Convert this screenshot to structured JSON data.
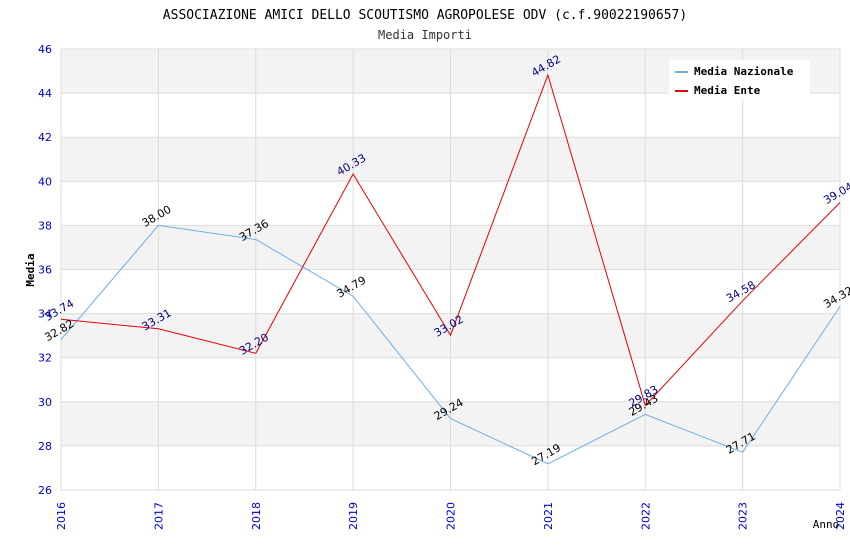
{
  "chart_data": {
    "type": "line",
    "title": "ASSOCIAZIONE AMICI DELLO SCOUTISMO AGROPOLESE ODV (c.f.90022190657)",
    "subtitle": "Media Importi",
    "xlabel": "Anno",
    "ylabel": "Media",
    "x": [
      "2016",
      "2017",
      "2018",
      "2019",
      "2020",
      "2021",
      "2022",
      "2023",
      "2024"
    ],
    "ylim": [
      26,
      46
    ],
    "yticks": [
      "26",
      "28",
      "30",
      "32",
      "34",
      "36",
      "38",
      "40",
      "42",
      "44",
      "46"
    ],
    "grid": true,
    "legend_position": "top-right",
    "series": [
      {
        "name": "Media Nazionale",
        "color": "#6aaee8",
        "label_color": "#000000",
        "values": [
          32.82,
          38.0,
          37.36,
          34.79,
          29.24,
          27.19,
          29.43,
          27.71,
          34.32
        ],
        "labels": [
          "32.82",
          "38.00",
          "37.36",
          "34.79",
          "29.24",
          "27.19",
          "29.43",
          "27.71",
          "34.32"
        ]
      },
      {
        "name": "Media Ente",
        "color": "#e8000b",
        "label_color": "#000080",
        "values": [
          33.74,
          33.31,
          32.2,
          40.33,
          33.02,
          44.82,
          29.83,
          34.58,
          39.04
        ],
        "labels": [
          "33.74",
          "33.31",
          "32.20",
          "40.33",
          "33.02",
          "44.82",
          "29.83",
          "34.58",
          "39.04"
        ]
      }
    ]
  }
}
